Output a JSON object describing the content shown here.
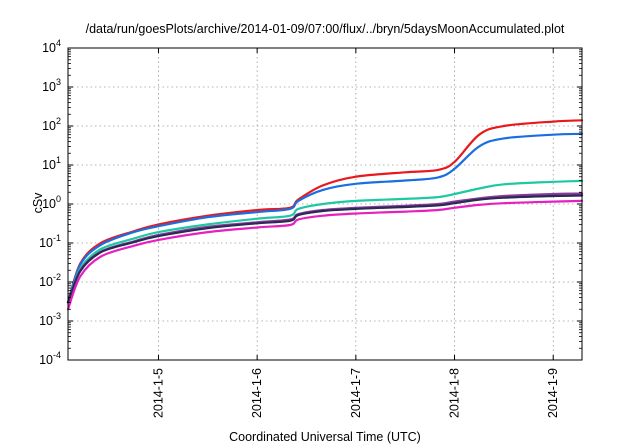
{
  "chart_data": {
    "type": "line",
    "title": "/data/run/goesPlots/archive/2014-01-09/07:00/flux/../bryn/5daysMoonAccumulated.plot",
    "xlabel": "Coordinated Universal Time (UTC)",
    "ylabel": "cSv",
    "y_scale": "log",
    "ylim": [
      0.0001,
      10000
    ],
    "xlim": [
      "2014-01-04 02:00",
      "2014-01-09 07:00"
    ],
    "x_ticks": [
      "2014-1-5",
      "2014-1-6",
      "2014-1-7",
      "2014-1-8",
      "2014-1-9"
    ],
    "y_ticks": [
      {
        "base": "10",
        "exp": "-4"
      },
      {
        "base": "10",
        "exp": "-3"
      },
      {
        "base": "10",
        "exp": "-2"
      },
      {
        "base": "10",
        "exp": "-1"
      },
      {
        "base": "10",
        "exp": "0"
      },
      {
        "base": "10",
        "exp": "1"
      },
      {
        "base": "10",
        "exp": "2"
      },
      {
        "base": "10",
        "exp": "3"
      },
      {
        "base": "10",
        "exp": "4"
      }
    ],
    "grid": true,
    "series": [
      {
        "color": "#e8191c",
        "points": [
          [
            "2014-01-04 02:00",
            0.003
          ],
          [
            "2014-01-04 05:00",
            0.03
          ],
          [
            "2014-01-04 10:00",
            0.1
          ],
          [
            "2014-01-04 18:00",
            0.2
          ],
          [
            "2014-01-05 00:00",
            0.3
          ],
          [
            "2014-01-05 12:00",
            0.5
          ],
          [
            "2014-01-06 00:00",
            0.7
          ],
          [
            "2014-01-06 08:00",
            0.8
          ],
          [
            "2014-01-06 10:00",
            1.3
          ],
          [
            "2014-01-06 16:00",
            3.0
          ],
          [
            "2014-01-07 00:00",
            5.0
          ],
          [
            "2014-01-07 12:00",
            6.5
          ],
          [
            "2014-01-07 20:00",
            7.5
          ],
          [
            "2014-01-08 00:00",
            12
          ],
          [
            "2014-01-08 06:00",
            60
          ],
          [
            "2014-01-08 12:00",
            100
          ],
          [
            "2014-01-09 00:00",
            130
          ],
          [
            "2014-01-09 07:00",
            140
          ]
        ]
      },
      {
        "color": "#1a6fe0",
        "points": [
          [
            "2014-01-04 02:00",
            0.003
          ],
          [
            "2014-01-04 05:00",
            0.028
          ],
          [
            "2014-01-04 10:00",
            0.09
          ],
          [
            "2014-01-04 18:00",
            0.19
          ],
          [
            "2014-01-05 00:00",
            0.27
          ],
          [
            "2014-01-05 12:00",
            0.46
          ],
          [
            "2014-01-06 00:00",
            0.62
          ],
          [
            "2014-01-06 08:00",
            0.75
          ],
          [
            "2014-01-06 10:00",
            1.2
          ],
          [
            "2014-01-06 16:00",
            2.3
          ],
          [
            "2014-01-07 00:00",
            3.3
          ],
          [
            "2014-01-07 12:00",
            4.0
          ],
          [
            "2014-01-07 20:00",
            4.8
          ],
          [
            "2014-01-08 00:00",
            8
          ],
          [
            "2014-01-08 06:00",
            30
          ],
          [
            "2014-01-08 12:00",
            48
          ],
          [
            "2014-01-09 00:00",
            60
          ],
          [
            "2014-01-09 07:00",
            63
          ]
        ]
      },
      {
        "color": "#1ec8a0",
        "points": [
          [
            "2014-01-04 02:00",
            0.003
          ],
          [
            "2014-01-04 05:00",
            0.022
          ],
          [
            "2014-01-04 10:00",
            0.07
          ],
          [
            "2014-01-04 18:00",
            0.13
          ],
          [
            "2014-01-05 00:00",
            0.19
          ],
          [
            "2014-01-05 12:00",
            0.3
          ],
          [
            "2014-01-06 00:00",
            0.42
          ],
          [
            "2014-01-06 08:00",
            0.5
          ],
          [
            "2014-01-06 10:00",
            0.75
          ],
          [
            "2014-01-06 16:00",
            1.0
          ],
          [
            "2014-01-07 00:00",
            1.2
          ],
          [
            "2014-01-07 12:00",
            1.35
          ],
          [
            "2014-01-07 20:00",
            1.5
          ],
          [
            "2014-01-08 00:00",
            1.8
          ],
          [
            "2014-01-08 06:00",
            2.5
          ],
          [
            "2014-01-08 12:00",
            3.2
          ],
          [
            "2014-01-09 00:00",
            3.7
          ],
          [
            "2014-01-09 07:00",
            3.9
          ]
        ]
      },
      {
        "color": "#8a3a9a",
        "points": [
          [
            "2014-01-04 02:00",
            0.003
          ],
          [
            "2014-01-04 05:00",
            0.02
          ],
          [
            "2014-01-04 10:00",
            0.06
          ],
          [
            "2014-01-04 18:00",
            0.11
          ],
          [
            "2014-01-05 00:00",
            0.16
          ],
          [
            "2014-01-05 12:00",
            0.26
          ],
          [
            "2014-01-06 00:00",
            0.34
          ],
          [
            "2014-01-06 08:00",
            0.4
          ],
          [
            "2014-01-06 10:00",
            0.55
          ],
          [
            "2014-01-06 16:00",
            0.7
          ],
          [
            "2014-01-07 00:00",
            0.8
          ],
          [
            "2014-01-07 12:00",
            0.9
          ],
          [
            "2014-01-07 20:00",
            1.0
          ],
          [
            "2014-01-08 00:00",
            1.15
          ],
          [
            "2014-01-08 06:00",
            1.4
          ],
          [
            "2014-01-08 12:00",
            1.6
          ],
          [
            "2014-01-09 00:00",
            1.8
          ],
          [
            "2014-01-09 07:00",
            1.85
          ]
        ]
      },
      {
        "color": "#2a2a55",
        "points": [
          [
            "2014-01-04 02:00",
            0.003
          ],
          [
            "2014-01-04 05:00",
            0.019
          ],
          [
            "2014-01-04 10:00",
            0.058
          ],
          [
            "2014-01-04 18:00",
            0.105
          ],
          [
            "2014-01-05 00:00",
            0.15
          ],
          [
            "2014-01-05 12:00",
            0.24
          ],
          [
            "2014-01-06 00:00",
            0.32
          ],
          [
            "2014-01-06 08:00",
            0.37
          ],
          [
            "2014-01-06 10:00",
            0.52
          ],
          [
            "2014-01-06 16:00",
            0.66
          ],
          [
            "2014-01-07 00:00",
            0.75
          ],
          [
            "2014-01-07 12:00",
            0.84
          ],
          [
            "2014-01-07 20:00",
            0.92
          ],
          [
            "2014-01-08 00:00",
            1.05
          ],
          [
            "2014-01-08 06:00",
            1.3
          ],
          [
            "2014-01-08 12:00",
            1.45
          ],
          [
            "2014-01-09 00:00",
            1.6
          ],
          [
            "2014-01-09 07:00",
            1.65
          ]
        ]
      },
      {
        "color": "#e620c0",
        "points": [
          [
            "2014-01-04 02:00",
            0.002
          ],
          [
            "2014-01-04 05:00",
            0.014
          ],
          [
            "2014-01-04 10:00",
            0.045
          ],
          [
            "2014-01-04 18:00",
            0.085
          ],
          [
            "2014-01-05 00:00",
            0.12
          ],
          [
            "2014-01-05 12:00",
            0.19
          ],
          [
            "2014-01-06 00:00",
            0.25
          ],
          [
            "2014-01-06 08:00",
            0.29
          ],
          [
            "2014-01-06 10:00",
            0.4
          ],
          [
            "2014-01-06 16:00",
            0.5
          ],
          [
            "2014-01-07 00:00",
            0.57
          ],
          [
            "2014-01-07 12:00",
            0.64
          ],
          [
            "2014-01-07 20:00",
            0.7
          ],
          [
            "2014-01-08 00:00",
            0.8
          ],
          [
            "2014-01-08 06:00",
            0.95
          ],
          [
            "2014-01-08 12:00",
            1.05
          ],
          [
            "2014-01-09 00:00",
            1.15
          ],
          [
            "2014-01-09 07:00",
            1.2
          ]
        ]
      }
    ]
  }
}
